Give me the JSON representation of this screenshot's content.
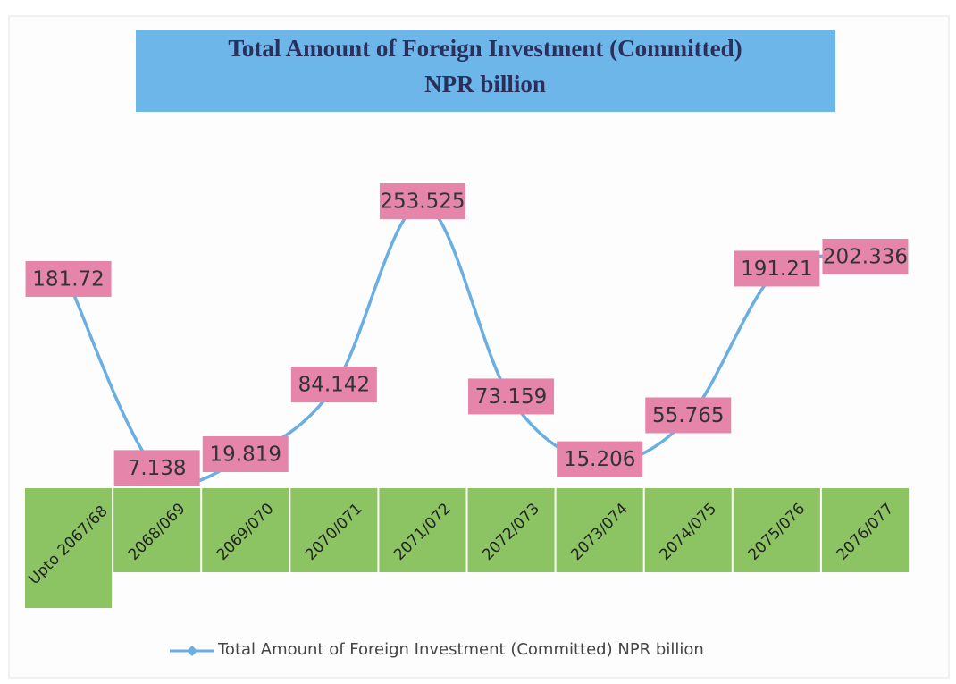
{
  "chart_data": {
    "type": "line",
    "title": "Total Amount of Foreign Investment (Committed)",
    "subtitle": "NPR billion",
    "categories": [
      "Upto 2067/68",
      "2068/069",
      "2069/070",
      "2070/071",
      "2071/072",
      "2072/073",
      "2073/074",
      "2074/075",
      "2075/076",
      "2076/077"
    ],
    "series": [
      {
        "name": "Total Amount of Foreign Investment (Committed) NPR billion",
        "color": "#6aaee2",
        "values": [
          181.72,
          7.138,
          19.819,
          84.142,
          253.525,
          73.159,
          15.206,
          55.765,
          191.21,
          202.336
        ]
      }
    ],
    "legend": "bottom"
  }
}
